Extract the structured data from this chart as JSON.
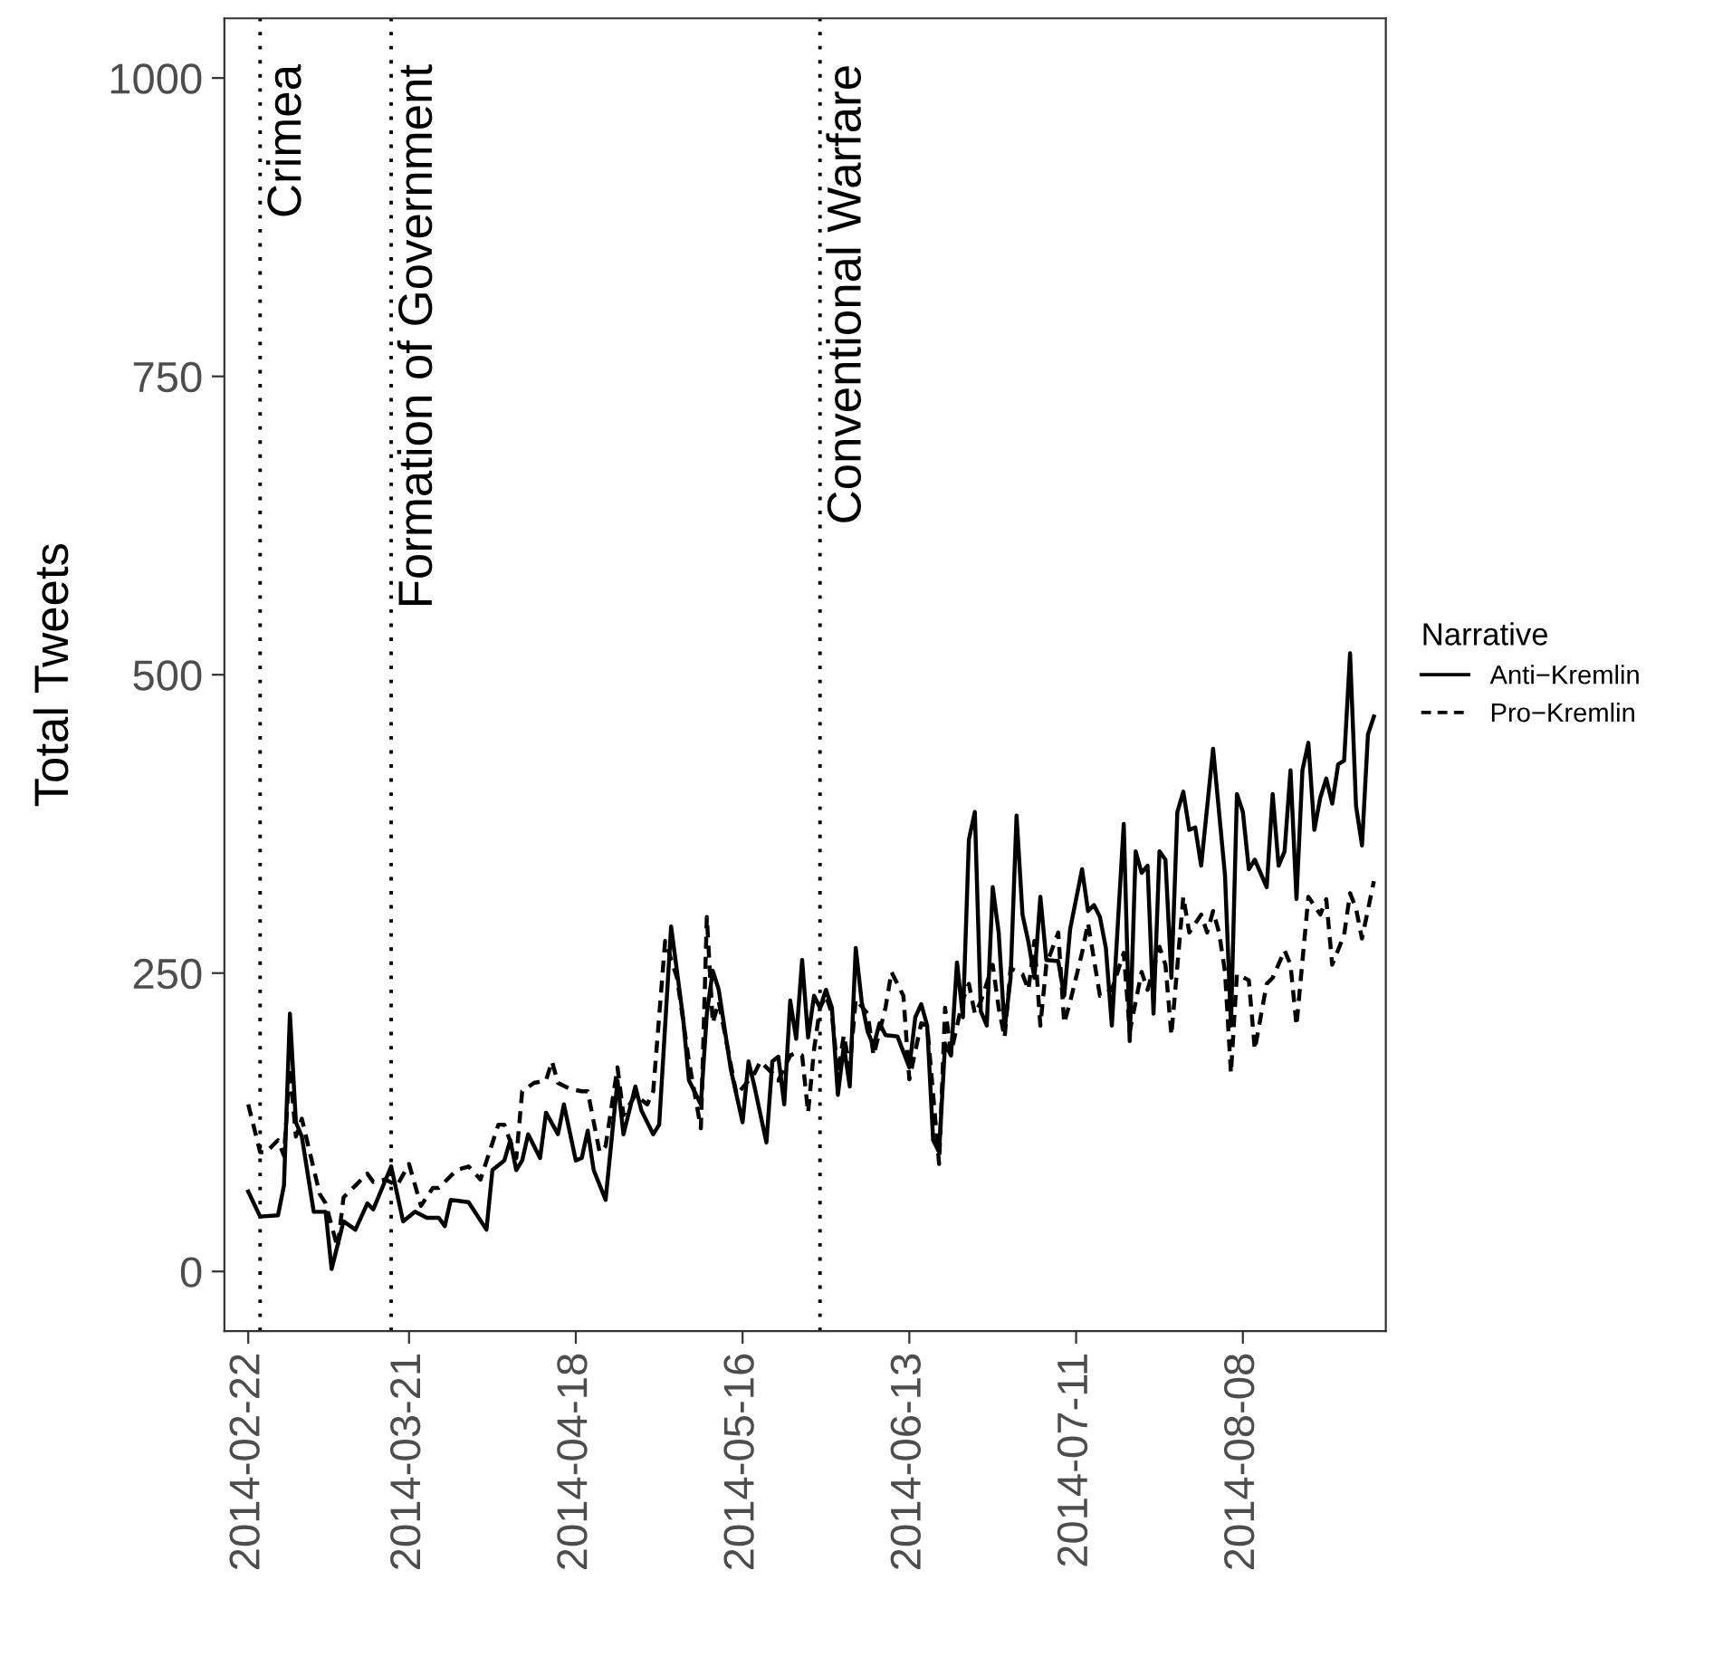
{
  "chart_data": {
    "type": "line",
    "ylabel": "Total Tweets",
    "legend_title": "Narrative",
    "legend": "right",
    "grid": false,
    "marker": "none",
    "xlim": [
      "2014-02-18",
      "2014-09-01"
    ],
    "ylim": [
      -50,
      1050
    ],
    "xticks": [
      "2014-02-22",
      "2014-03-21",
      "2014-04-18",
      "2014-05-16",
      "2014-06-13",
      "2014-07-11",
      "2014-08-08"
    ],
    "yticks": [
      0,
      250,
      500,
      750,
      1000
    ],
    "ref_lines": [
      {
        "axis": "x",
        "value": "2014-02-24",
        "label": "Crimea",
        "color": "#000000",
        "line_style": "dotted"
      },
      {
        "axis": "x",
        "value": "2014-03-18",
        "label": "Formation of Government",
        "color": "#000000",
        "line_style": "dotted"
      },
      {
        "axis": "x",
        "value": "2014-05-29",
        "label": "Conventional Warfare",
        "color": "#000000",
        "line_style": "dotted"
      }
    ],
    "series": [
      {
        "name": "Anti−Kremlin",
        "color": "#000000",
        "line_style": "solid",
        "x": [
          "2014-02-22",
          "2014-02-24",
          "2014-02-27",
          "2014-02-28",
          "2014-03-01",
          "2014-03-02",
          "2014-03-03",
          "2014-03-05",
          "2014-03-07",
          "2014-03-08",
          "2014-03-10",
          "2014-03-12",
          "2014-03-14",
          "2014-03-15",
          "2014-03-18",
          "2014-03-20",
          "2014-03-22",
          "2014-03-24",
          "2014-03-26",
          "2014-03-27",
          "2014-03-28",
          "2014-03-31",
          "2014-04-03",
          "2014-04-04",
          "2014-04-06",
          "2014-04-07",
          "2014-04-08",
          "2014-04-09",
          "2014-04-10",
          "2014-04-12",
          "2014-04-13",
          "2014-04-15",
          "2014-04-16",
          "2014-04-18",
          "2014-04-19",
          "2014-04-20",
          "2014-04-21",
          "2014-04-23",
          "2014-04-25",
          "2014-04-26",
          "2014-04-28",
          "2014-04-29",
          "2014-05-01",
          "2014-05-02",
          "2014-05-04",
          "2014-05-06",
          "2014-05-07",
          "2014-05-09",
          "2014-05-10",
          "2014-05-11",
          "2014-05-12",
          "2014-05-14",
          "2014-05-16",
          "2014-05-17",
          "2014-05-18",
          "2014-05-20",
          "2014-05-21",
          "2014-05-22",
          "2014-05-23",
          "2014-05-24",
          "2014-05-25",
          "2014-05-26",
          "2014-05-27",
          "2014-05-28",
          "2014-05-29",
          "2014-05-30",
          "2014-05-31",
          "2014-06-01",
          "2014-06-02",
          "2014-06-03",
          "2014-06-04",
          "2014-06-05",
          "2014-06-06",
          "2014-06-07",
          "2014-06-08",
          "2014-06-09",
          "2014-06-11",
          "2014-06-13",
          "2014-06-14",
          "2014-06-15",
          "2014-06-16",
          "2014-06-17",
          "2014-06-18",
          "2014-06-19",
          "2014-06-20",
          "2014-06-21",
          "2014-06-22",
          "2014-06-23",
          "2014-06-24",
          "2014-06-25",
          "2014-06-26",
          "2014-06-27",
          "2014-06-28",
          "2014-06-29",
          "2014-06-30",
          "2014-07-01",
          "2014-07-02",
          "2014-07-03",
          "2014-07-04",
          "2014-07-05",
          "2014-07-06",
          "2014-07-08",
          "2014-07-09",
          "2014-07-10",
          "2014-07-12",
          "2014-07-13",
          "2014-07-14",
          "2014-07-15",
          "2014-07-16",
          "2014-07-17",
          "2014-07-19",
          "2014-07-20",
          "2014-07-21",
          "2014-07-22",
          "2014-07-23",
          "2014-07-24",
          "2014-07-25",
          "2014-07-26",
          "2014-07-27",
          "2014-07-28",
          "2014-07-29",
          "2014-07-30",
          "2014-07-31",
          "2014-08-01",
          "2014-08-03",
          "2014-08-05",
          "2014-08-06",
          "2014-08-07",
          "2014-08-08",
          "2014-08-09",
          "2014-08-10",
          "2014-08-12",
          "2014-08-13",
          "2014-08-14",
          "2014-08-15",
          "2014-08-16",
          "2014-08-17",
          "2014-08-18",
          "2014-08-19",
          "2014-08-20",
          "2014-08-21",
          "2014-08-22",
          "2014-08-23",
          "2014-08-24",
          "2014-08-25",
          "2014-08-26",
          "2014-08-27",
          "2014-08-28",
          "2014-08-29",
          "2014-08-30"
        ],
        "values": [
          67,
          46,
          47,
          72,
          216,
          125,
          113,
          50,
          50,
          2,
          42,
          35,
          57,
          52,
          88,
          42,
          50,
          45,
          45,
          38,
          60,
          58,
          35,
          85,
          93,
          110,
          85,
          93,
          115,
          95,
          133,
          115,
          140,
          93,
          95,
          118,
          85,
          60,
          160,
          115,
          155,
          135,
          115,
          123,
          289,
          213,
          160,
          140,
          216,
          252,
          236,
          170,
          125,
          176,
          155,
          108,
          176,
          180,
          140,
          227,
          195,
          261,
          196,
          231,
          221,
          236,
          221,
          148,
          189,
          155,
          271,
          226,
          201,
          189,
          208,
          198,
          197,
          171,
          213,
          224,
          206,
          110,
          100,
          191,
          181,
          259,
          213,
          362,
          385,
          218,
          206,
          322,
          284,
          203,
          246,
          382,
          299,
          276,
          246,
          314,
          261,
          260,
          231,
          287,
          337,
          302,
          307,
          297,
          271,
          206,
          375,
          193,
          352,
          334,
          340,
          216,
          352,
          345,
          246,
          385,
          402,
          370,
          372,
          340,
          438,
          332,
          206,
          400,
          385,
          337,
          345,
          322,
          400,
          340,
          352,
          420,
          312,
          420,
          443,
          370,
          397,
          413,
          392,
          425,
          428,
          518,
          390,
          357,
          450,
          465
        ]
      },
      {
        "name": "Pro−Kremlin",
        "color": "#000000",
        "line_style": "dashed",
        "x": [
          "2014-02-22",
          "2014-02-24",
          "2014-02-25",
          "2014-02-27",
          "2014-02-28",
          "2014-03-01",
          "2014-03-02",
          "2014-03-03",
          "2014-03-06",
          "2014-03-07",
          "2014-03-09",
          "2014-03-10",
          "2014-03-12",
          "2014-03-14",
          "2014-03-15",
          "2014-03-17",
          "2014-03-19",
          "2014-03-21",
          "2014-03-23",
          "2014-03-25",
          "2014-03-26",
          "2014-03-29",
          "2014-03-31",
          "2014-04-02",
          "2014-04-05",
          "2014-04-06",
          "2014-04-08",
          "2014-04-09",
          "2014-04-11",
          "2014-04-13",
          "2014-04-14",
          "2014-04-15",
          "2014-04-17",
          "2014-04-19",
          "2014-04-20",
          "2014-04-22",
          "2014-04-23",
          "2014-04-25",
          "2014-04-26",
          "2014-04-28",
          "2014-04-30",
          "2014-05-01",
          "2014-05-03",
          "2014-05-05",
          "2014-05-07",
          "2014-05-09",
          "2014-05-10",
          "2014-05-11",
          "2014-05-12",
          "2014-05-15",
          "2014-05-17",
          "2014-05-18",
          "2014-05-19",
          "2014-05-21",
          "2014-05-22",
          "2014-05-24",
          "2014-05-25",
          "2014-05-26",
          "2014-05-27",
          "2014-05-28",
          "2014-05-29",
          "2014-05-30",
          "2014-05-31",
          "2014-06-01",
          "2014-06-02",
          "2014-06-03",
          "2014-06-04",
          "2014-06-06",
          "2014-06-07",
          "2014-06-09",
          "2014-06-10",
          "2014-06-12",
          "2014-06-13",
          "2014-06-15",
          "2014-06-16",
          "2014-06-18",
          "2014-06-19",
          "2014-06-20",
          "2014-06-22",
          "2014-06-23",
          "2014-06-24",
          "2014-06-25",
          "2014-06-27",
          "2014-06-28",
          "2014-06-29",
          "2014-06-30",
          "2014-07-02",
          "2014-07-03",
          "2014-07-04",
          "2014-07-05",
          "2014-07-06",
          "2014-07-08",
          "2014-07-09",
          "2014-07-10",
          "2014-07-12",
          "2014-07-13",
          "2014-07-15",
          "2014-07-17",
          "2014-07-19",
          "2014-07-20",
          "2014-07-22",
          "2014-07-23",
          "2014-07-25",
          "2014-07-26",
          "2014-07-27",
          "2014-07-29",
          "2014-07-30",
          "2014-08-01",
          "2014-08-02",
          "2014-08-03",
          "2014-08-04",
          "2014-08-05",
          "2014-08-06",
          "2014-08-07",
          "2014-08-09",
          "2014-08-10",
          "2014-08-12",
          "2014-08-13",
          "2014-08-15",
          "2014-08-16",
          "2014-08-17",
          "2014-08-19",
          "2014-08-21",
          "2014-08-22",
          "2014-08-23",
          "2014-08-25",
          "2014-08-26",
          "2014-08-27",
          "2014-08-28",
          "2014-08-30"
        ],
        "values": [
          140,
          100,
          100,
          110,
          97,
          171,
          113,
          128,
          65,
          57,
          20,
          62,
          72,
          82,
          75,
          77,
          72,
          90,
          55,
          70,
          70,
          85,
          88,
          77,
          123,
          123,
          95,
          151,
          158,
          160,
          176,
          158,
          153,
          151,
          151,
          100,
          105,
          171,
          131,
          148,
          140,
          151,
          277,
          246,
          176,
          120,
          297,
          208,
          226,
          148,
          160,
          166,
          176,
          166,
          160,
          181,
          183,
          181,
          133,
          186,
          221,
          231,
          216,
          166,
          198,
          171,
          228,
          216,
          181,
          221,
          251,
          231,
          161,
          208,
          206,
          90,
          221,
          183,
          228,
          241,
          216,
          226,
          257,
          221,
          196,
          254,
          249,
          236,
          277,
          206,
          257,
          284,
          208,
          226,
          267,
          292,
          231,
          236,
          267,
          201,
          251,
          236,
          272,
          257,
          198,
          314,
          284,
          299,
          284,
          302,
          284,
          251,
          166,
          249,
          244,
          186,
          241,
          246,
          269,
          257,
          206,
          314,
          299,
          312,
          257,
          282,
          317,
          304,
          279,
          327
        ]
      }
    ]
  }
}
